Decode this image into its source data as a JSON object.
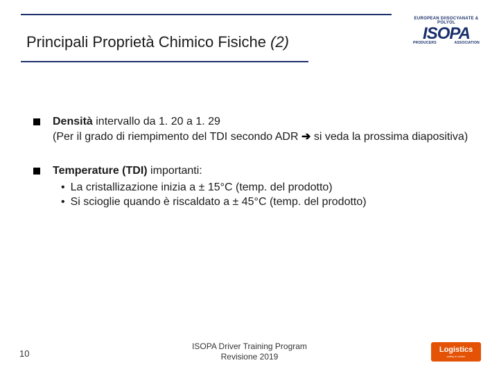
{
  "colors": {
    "rule": "#1a2f6b",
    "text": "#1a1a1a",
    "footer_logo_bg": "#e35205",
    "background": "#ffffff"
  },
  "logo": {
    "top": "EUROPEAN DIISOCYANATE & POLYOL",
    "main": "ISOPA",
    "sub_left": "PRODUCERS",
    "sub_right": "ASSOCIATION"
  },
  "title": {
    "main": "Principali Proprietà Chimico Fisiche ",
    "suffix_italic": "(2)"
  },
  "bullets": [
    {
      "lead_bold": "Densità",
      "lead_rest": " intervallo da 1. 20 a 1. 29",
      "line2_pre": "(Per il grado di riempimento del TDI secondo ADR ",
      "arrow": "➔",
      "line2_post": " si veda la prossima diapositiva)"
    },
    {
      "lead_bold": "Temperature (TDI)",
      "lead_rest": " importanti:",
      "subs": [
        "La cristallizazione inizia a  ± 15°C (temp. del prodotto)",
        "Si scioglie quando è riscaldato a   ± 45°C (temp. del prodotto)"
      ]
    }
  ],
  "footer": {
    "page": "10",
    "line1": "ISOPA Driver Training Program",
    "line2": "Revisione 2019",
    "right_logo": "Logistics",
    "right_tag": "safety in action"
  }
}
